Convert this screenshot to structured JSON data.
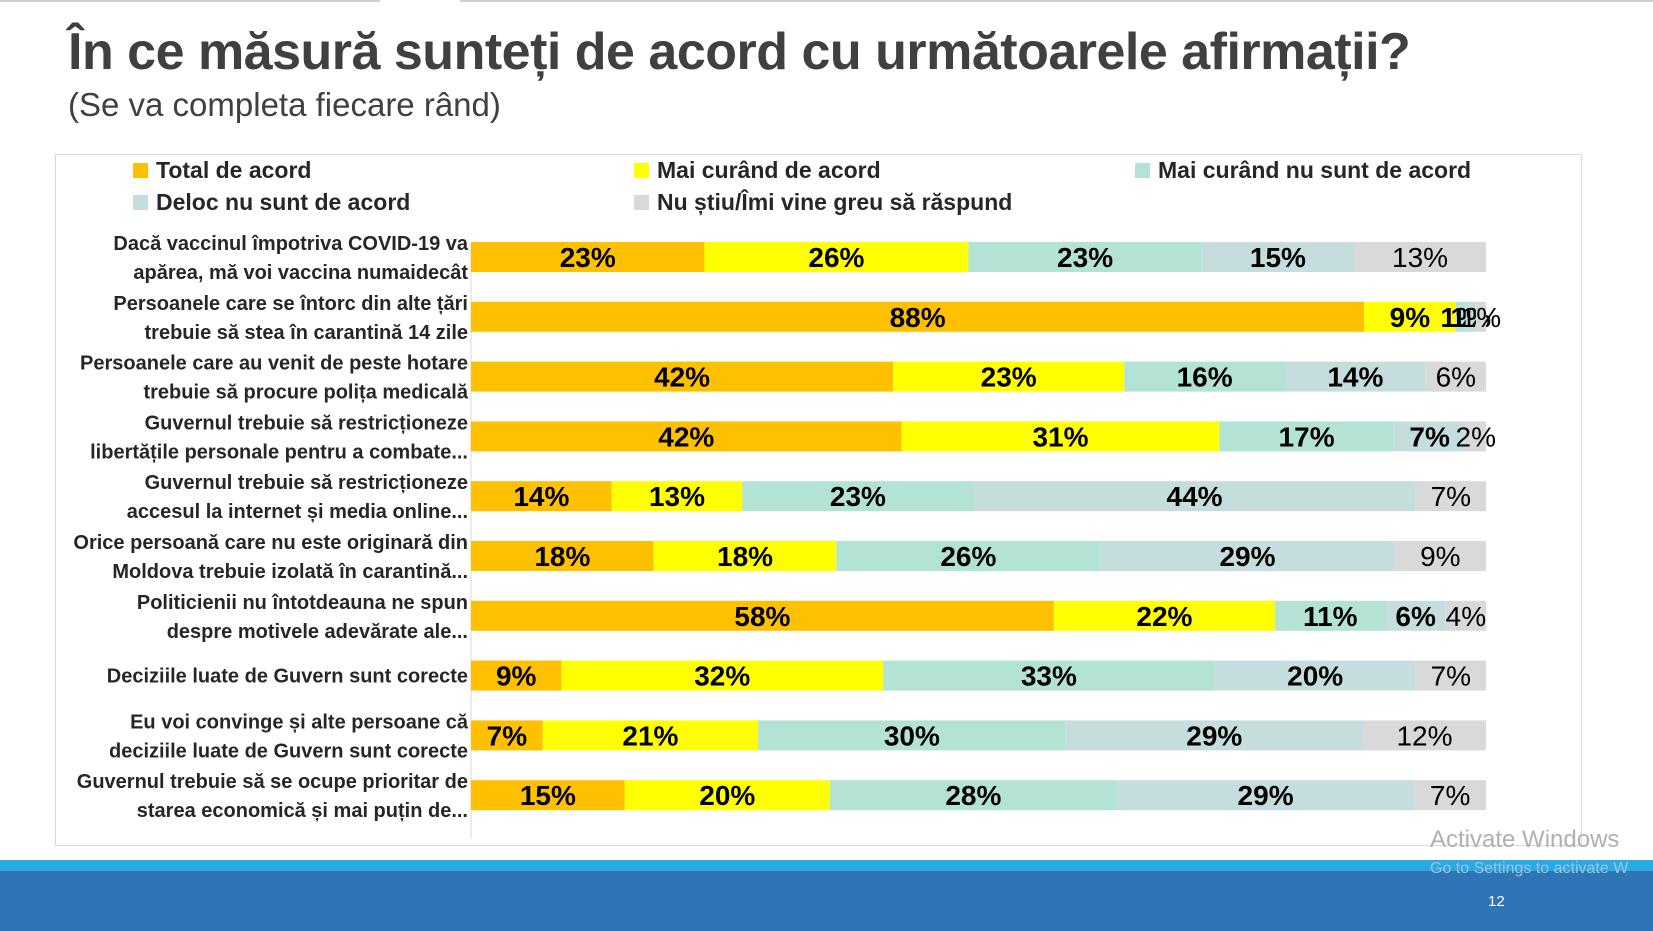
{
  "slide": {
    "title": "În ce măsură sunteți de acord cu următoarele afirmații?",
    "subtitle": "(Se va completa fiecare rând)",
    "page_number": "12"
  },
  "watermark": {
    "line1": "Activate Windows",
    "line2": "Go to Settings to activate W"
  },
  "legend": [
    {
      "label": "Total de acord",
      "color": "#ffc000"
    },
    {
      "label": "Mai curând de acord",
      "color": "#ffff00"
    },
    {
      "label": "Mai curând nu sunt de acord",
      "color": "#b3e3d5"
    },
    {
      "label": "Deloc nu sunt de acord",
      "color": "#c5dedd"
    },
    {
      "label": "Nu știu/Îmi vine greu să răspund",
      "color": "#d9d9d9"
    }
  ],
  "chart_data": {
    "type": "bar",
    "orientation": "horizontal",
    "stacked": true,
    "normalized": true,
    "categories": [
      [
        "Dacă vaccinul împotriva COVID-19 va",
        "apărea, mă voi vaccina numaidecât"
      ],
      [
        "Persoanele care se întorc din alte țări",
        "trebuie să stea în carantină 14 zile"
      ],
      [
        "Persoanele care au venit de peste hotare",
        "trebuie să procure polița medicală"
      ],
      [
        "Guvernul trebuie să restricționeze",
        "libertățile personale pentru a combate..."
      ],
      [
        "Guvernul trebuie să restricționeze",
        "accesul la internet și media online..."
      ],
      [
        "Orice persoană care nu este originară din",
        "Moldova trebuie izolată în carantină..."
      ],
      [
        "Politicienii nu întotdeauna ne spun",
        "despre motivele adevărate ale..."
      ],
      [
        "Deciziile luate de Guvern sunt corecte"
      ],
      [
        "Eu voi convinge și alte persoane că",
        "deciziile luate de Guvern sunt corecte"
      ],
      [
        "Guvernul trebuie să se ocupe prioritar de",
        "starea economică și mai puțin de..."
      ]
    ],
    "series": [
      {
        "name": "Total de acord",
        "color": "#ffc000",
        "label_bold": true,
        "values": [
          23,
          88,
          42,
          42,
          14,
          18,
          58,
          9,
          7,
          15
        ]
      },
      {
        "name": "Mai curând de acord",
        "color": "#ffff00",
        "label_bold": true,
        "values": [
          26,
          9,
          23,
          31,
          13,
          18,
          22,
          32,
          21,
          20
        ]
      },
      {
        "name": "Mai curând nu sunt de acord",
        "color": "#b3e3d5",
        "label_bold": true,
        "values": [
          23,
          1,
          16,
          17,
          23,
          26,
          11,
          33,
          30,
          28
        ]
      },
      {
        "name": "Deloc nu sunt de acord",
        "color": "#c5dedd",
        "label_bold": true,
        "values": [
          15,
          1,
          14,
          7,
          44,
          29,
          6,
          20,
          29,
          29
        ]
      },
      {
        "name": "Nu știu/Îmi vine greu să răspund",
        "color": "#d9d9d9",
        "label_bold": false,
        "values": [
          13,
          1,
          6,
          2,
          7,
          9,
          4,
          7,
          12,
          7
        ]
      }
    ],
    "value_labels": [
      [
        "23%",
        "26%",
        "23%",
        "15%",
        "13%"
      ],
      [
        "88%",
        "9%",
        "1%",
        "1%",
        "1%"
      ],
      [
        "42%",
        "23%",
        "16%",
        "14%",
        "6%"
      ],
      [
        "42%",
        "31%",
        "17%",
        "7%",
        "2%"
      ],
      [
        "14%",
        "13%",
        "23%",
        "44%",
        "7%"
      ],
      [
        "18%",
        "18%",
        "26%",
        "29%",
        "9%"
      ],
      [
        "58%",
        "22%",
        "11%",
        "6%",
        "4%"
      ],
      [
        "9%",
        "32%",
        "33%",
        "20%",
        "7%"
      ],
      [
        "7%",
        "21%",
        "30%",
        "29%",
        "12%"
      ],
      [
        "15%",
        "20%",
        "28%",
        "29%",
        "7%"
      ]
    ],
    "xlim": [
      0,
      100
    ],
    "grid": false,
    "legend_position": "top"
  }
}
